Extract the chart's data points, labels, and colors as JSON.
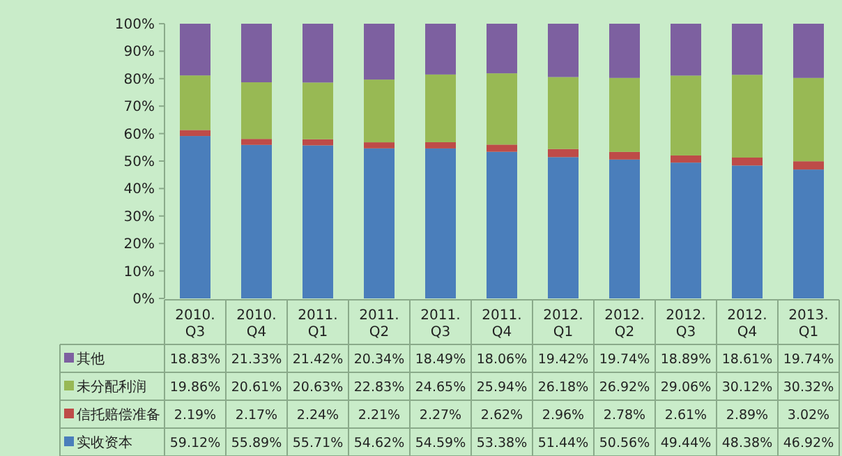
{
  "chart_data": {
    "type": "bar",
    "stacked": true,
    "legend": "bottom",
    "grid": false,
    "categories": [
      "2010. Q3",
      "2010. Q4",
      "2011. Q1",
      "2011. Q2",
      "2011. Q3",
      "2011. Q4",
      "2012. Q1",
      "2012. Q2",
      "2012. Q3",
      "2012. Q4",
      "2013. Q1"
    ],
    "ylim": [
      0,
      100
    ],
    "yticks": [
      {
        "value": 0,
        "label": "0%"
      },
      {
        "value": 10,
        "label": "10%"
      },
      {
        "value": 20,
        "label": "20%"
      },
      {
        "value": 30,
        "label": "30%"
      },
      {
        "value": 40,
        "label": "40%"
      },
      {
        "value": 50,
        "label": "50%"
      },
      {
        "value": 60,
        "label": "60%"
      },
      {
        "value": 70,
        "label": "70%"
      },
      {
        "value": 80,
        "label": "80%"
      },
      {
        "value": 90,
        "label": "90%"
      },
      {
        "value": 100,
        "label": "100%"
      }
    ],
    "series": [
      {
        "name": "实收资本",
        "color": "#4a7ebb",
        "values": [
          59.12,
          55.89,
          55.71,
          54.62,
          54.59,
          53.38,
          51.44,
          50.56,
          49.44,
          48.38,
          46.92
        ],
        "value_labels": [
          "59.12%",
          "55.89%",
          "55.71%",
          "54.62%",
          "54.59%",
          "53.38%",
          "51.44%",
          "50.56%",
          "49.44%",
          "48.38%",
          "46.92%"
        ]
      },
      {
        "name": "信托赔偿准备",
        "color": "#be4b48",
        "values": [
          2.19,
          2.17,
          2.24,
          2.21,
          2.27,
          2.62,
          2.96,
          2.78,
          2.61,
          2.89,
          3.02
        ],
        "value_labels": [
          "2.19%",
          "2.17%",
          "2.24%",
          "2.21%",
          "2.27%",
          "2.62%",
          "2.96%",
          "2.78%",
          "2.61%",
          "2.89%",
          "3.02%"
        ]
      },
      {
        "name": "未分配利润",
        "color": "#98b954",
        "values": [
          19.86,
          20.61,
          20.63,
          22.83,
          24.65,
          25.94,
          26.18,
          26.92,
          29.06,
          30.12,
          30.32
        ],
        "value_labels": [
          "19.86%",
          "20.61%",
          "20.63%",
          "22.83%",
          "24.65%",
          "25.94%",
          "26.18%",
          "26.92%",
          "29.06%",
          "30.12%",
          "30.32%"
        ]
      },
      {
        "name": "其他",
        "color": "#7d60a0",
        "values": [
          18.83,
          21.33,
          21.42,
          20.34,
          18.49,
          18.06,
          19.42,
          19.74,
          18.89,
          18.61,
          19.74
        ],
        "value_labels": [
          "18.83%",
          "21.33%",
          "21.42%",
          "20.34%",
          "18.49%",
          "18.06%",
          "19.42%",
          "19.74%",
          "18.89%",
          "18.61%",
          "19.74%"
        ]
      }
    ]
  }
}
